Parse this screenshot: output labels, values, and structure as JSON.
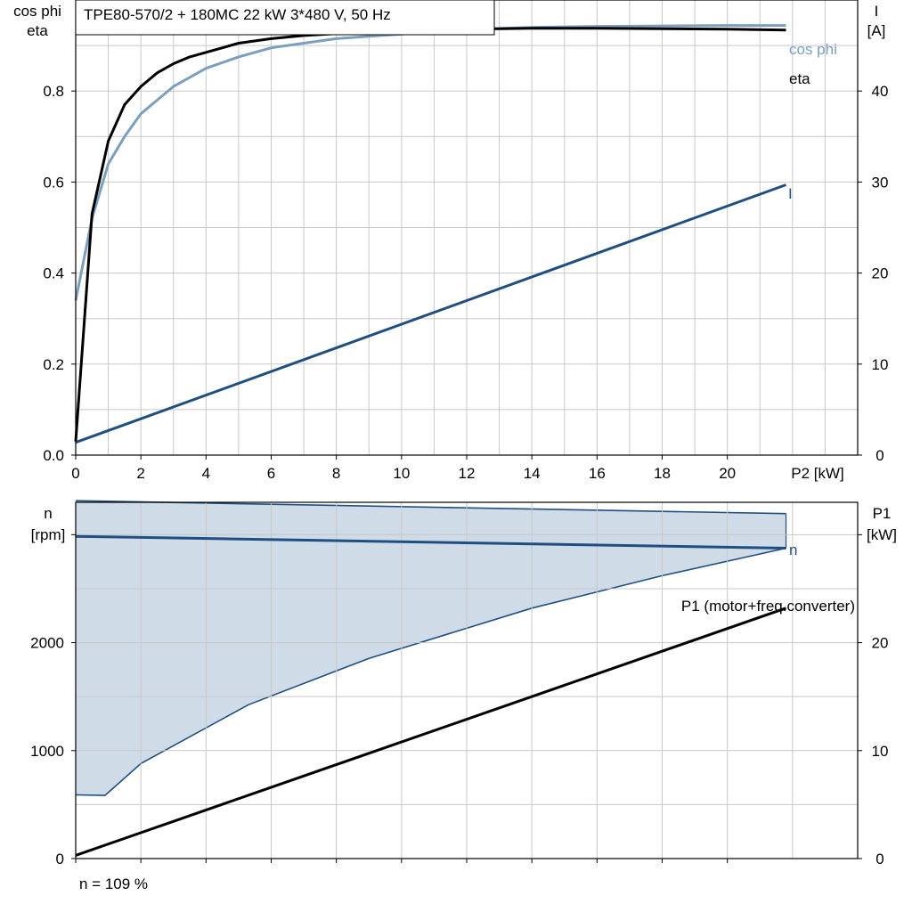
{
  "header": {
    "title": "TPE80-570/2 + 180MC   22 kW   3*480 V, 50 Hz"
  },
  "footer": {
    "speed_note": "n = 109 %"
  },
  "colors": {
    "cosphi": "#7a9fbf",
    "eta": "#000000",
    "current": "#1f4f82",
    "speed": "#1f4f82",
    "speed_band_fill": "#cfdbe7",
    "p1": "#000000",
    "grid": "#c8c8c8"
  },
  "chart_data": [
    {
      "type": "line",
      "xlabel": "P2 [kW]",
      "ylabel_left": [
        "cos phi",
        "eta"
      ],
      "ylabel_right": [
        "I",
        "[A]"
      ],
      "xlim": [
        0,
        24
      ],
      "ylim_left": [
        0,
        1.0
      ],
      "ylim_right": [
        0,
        50
      ],
      "x_ticks": [
        "0",
        "2",
        "4",
        "6",
        "8",
        "10",
        "12",
        "14",
        "16",
        "18",
        "20"
      ],
      "y_ticks_left": [
        "0.0",
        "0.2",
        "0.4",
        "0.6",
        "0.8"
      ],
      "y_ticks_right": [
        "0",
        "10",
        "20",
        "30",
        "40"
      ],
      "grid": true,
      "series": [
        {
          "name": "cos phi",
          "axis": "left",
          "x": [
            0,
            0.5,
            1.0,
            1.5,
            2.0,
            2.5,
            3.0,
            3.5,
            4.0,
            5.0,
            6.0,
            7.0,
            8.0,
            10.0,
            12.0,
            14.0,
            16.0,
            18.0,
            20.0,
            21.8
          ],
          "y": [
            0.34,
            0.52,
            0.64,
            0.7,
            0.75,
            0.78,
            0.81,
            0.83,
            0.85,
            0.875,
            0.895,
            0.905,
            0.915,
            0.925,
            0.935,
            0.94,
            0.942,
            0.943,
            0.944,
            0.944
          ]
        },
        {
          "name": "eta",
          "axis": "left",
          "x": [
            0,
            0.5,
            1.0,
            1.5,
            2.0,
            2.5,
            3.0,
            3.5,
            4.0,
            5.0,
            6.0,
            7.0,
            8.0,
            10.0,
            12.0,
            14.0,
            16.0,
            18.0,
            20.0,
            21.8
          ],
          "y": [
            0.03,
            0.53,
            0.69,
            0.77,
            0.81,
            0.84,
            0.86,
            0.875,
            0.885,
            0.905,
            0.915,
            0.922,
            0.926,
            0.932,
            0.936,
            0.938,
            0.938,
            0.937,
            0.936,
            0.934
          ]
        },
        {
          "name": "I",
          "axis": "right",
          "x": [
            0,
            21.8
          ],
          "y": [
            1.4,
            29.7
          ]
        }
      ]
    },
    {
      "type": "line",
      "xlim": [
        0,
        24
      ],
      "ylabel_left": [
        "n",
        "[rpm]"
      ],
      "ylabel_right": [
        "P1",
        "[kW]"
      ],
      "ylim_left": [
        0,
        3300
      ],
      "ylim_right": [
        0,
        33
      ],
      "y_ticks_left": [
        "0",
        "1000",
        "2000"
      ],
      "y_ticks_right": [
        "0",
        "10",
        "20"
      ],
      "grid": true,
      "series": [
        {
          "name": "n",
          "axis": "left",
          "x": [
            0,
            21.8
          ],
          "y": [
            2985,
            2875
          ]
        },
        {
          "name": "P1 (motor+freq.converter)",
          "axis": "right",
          "x": [
            0,
            21.8
          ],
          "y": [
            0.3,
            23.2
          ]
        }
      ],
      "band": {
        "axis": "left",
        "upper": {
          "x": [
            0,
            21.8
          ],
          "y": [
            3315,
            3195
          ]
        },
        "lower": {
          "x": [
            0,
            0.9,
            2.0,
            5.3,
            9.0,
            14.0,
            18.0,
            21.8
          ],
          "y": [
            590,
            585,
            880,
            1425,
            1855,
            2320,
            2620,
            2875
          ]
        }
      }
    }
  ]
}
